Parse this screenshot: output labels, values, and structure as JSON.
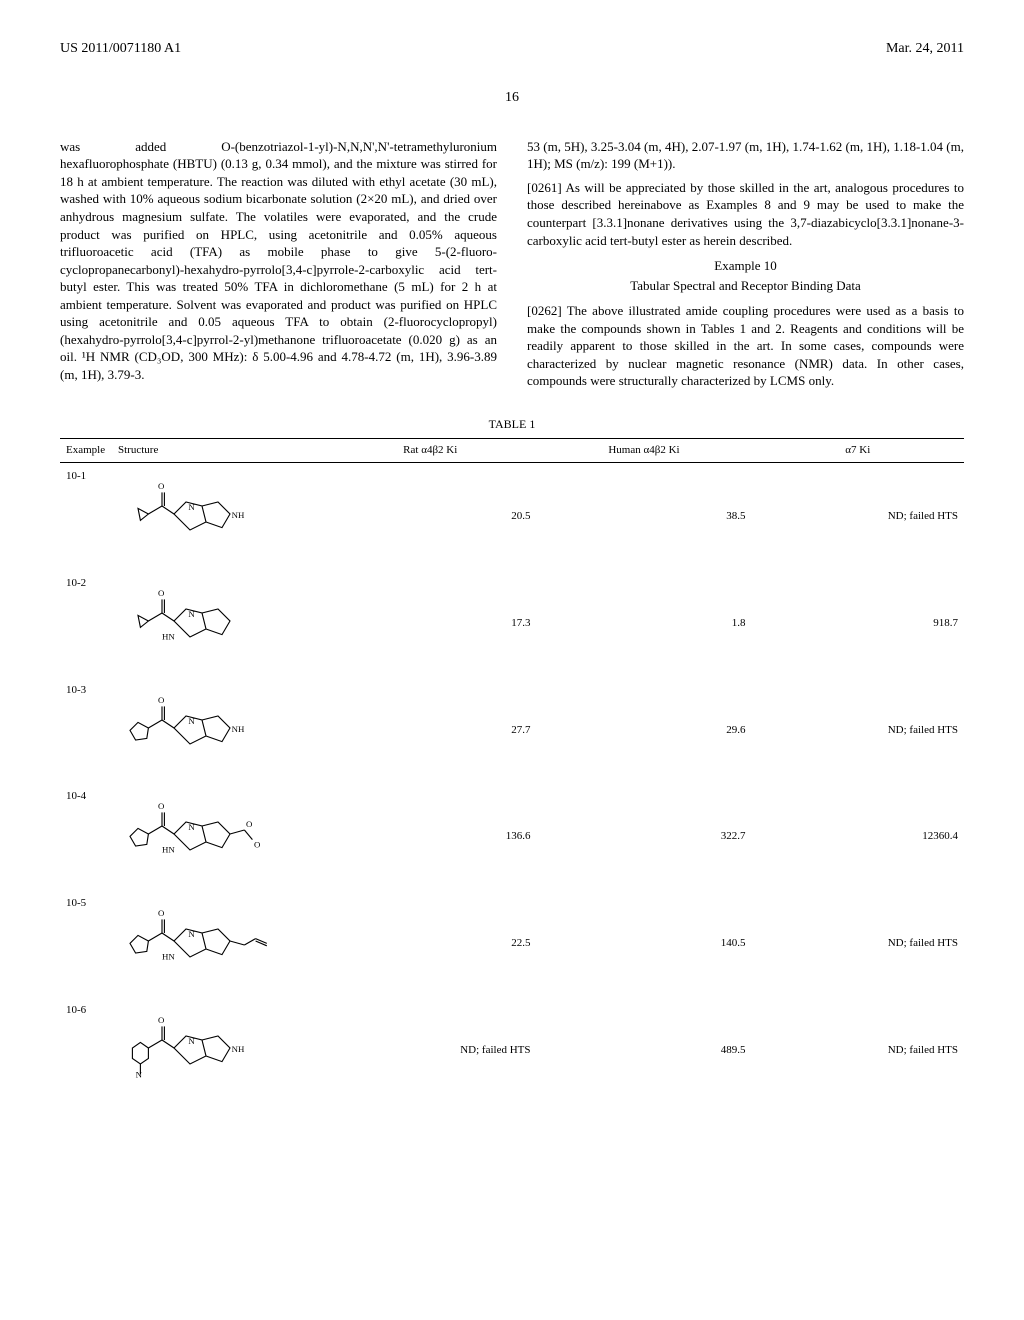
{
  "header": {
    "left": "US 2011/0071180 A1",
    "right": "Mar. 24, 2011"
  },
  "page_number": "16",
  "left_col": {
    "para1": "was added O-(benzotriazol-1-yl)-N,N,N',N'-tetramethyluronium hexafluorophosphate (HBTU) (0.13 g, 0.34 mmol), and the mixture was stirred for 18 h at ambient temperature. The reaction was diluted with ethyl acetate (30 mL), washed with 10% aqueous sodium bicarbonate solution (2×20 mL), and dried over anhydrous magnesium sulfate. The volatiles were evaporated, and the crude product was purified on HPLC, using acetonitrile and 0.05% aqueous trifluoroacetic acid (TFA) as mobile phase to give 5-(2-fluoro-cyclopropanecarbonyl)-hexahydro-pyrrolo[3,4-c]pyrrole-2-carboxylic acid tert-butyl ester. This was treated 50% TFA in dichloromethane (5 mL) for 2 h at ambient temperature. Solvent was evaporated and product was purified on HPLC using acetonitrile and 0.05 aqueous TFA to obtain (2-fluorocyclopropyl)(hexahydro-pyrrolo[3,4-c]pyrrol-2-yl)methanone trifluoroacetate (0.020 g) as an oil. ¹H NMR (CD₃OD, 300 MHz): δ 5.00-4.96 and 4.78-4.72 (m, 1H), 3.96-3.89 (m, 1H), 3.79-3."
  },
  "right_col": {
    "para1": "53 (m, 5H), 3.25-3.04 (m, 4H), 2.07-1.97 (m, 1H), 1.74-1.62 (m, 1H), 1.18-1.04 (m, 1H); MS (m/z): 199 (M+1)).",
    "para2_num": "[0261]",
    "para2": " As will be appreciated by those skilled in the art, analogous procedures to those described hereinabove as Examples 8 and 9 may be used to make the counterpart [3.3.1]nonane derivatives using the 3,7-diazabicyclo[3.3.1]nonane-3-carboxylic acid tert-butyl ester as herein described.",
    "example_heading": "Example 10",
    "example_sub": "Tabular Spectral and Receptor Binding Data",
    "para3_num": "[0262]",
    "para3": " The above illustrated amide coupling procedures were used as a basis to make the compounds shown in Tables 1 and 2. Reagents and conditions will be readily apparent to those skilled in the art. In some cases, compounds were characterized by nuclear magnetic resonance (NMR) data. In other cases, compounds were structurally characterized by LCMS only."
  },
  "table": {
    "caption": "TABLE 1",
    "columns": [
      "Example",
      "Structure",
      "Rat α4β2 Ki",
      "Human α4β2 Ki",
      "α7 Ki"
    ],
    "rows": [
      {
        "example": "10-1",
        "structure_key": "s1",
        "rat": "20.5",
        "human": "38.5",
        "a7": "ND; failed HTS"
      },
      {
        "example": "10-2",
        "structure_key": "s2",
        "rat": "17.3",
        "human": "1.8",
        "a7": "918.7"
      },
      {
        "example": "10-3",
        "structure_key": "s3",
        "rat": "27.7",
        "human": "29.6",
        "a7": "ND; failed HTS"
      },
      {
        "example": "10-4",
        "structure_key": "s4",
        "rat": "136.6",
        "human": "322.7",
        "a7": "12360.4"
      },
      {
        "example": "10-5",
        "structure_key": "s5",
        "rat": "22.5",
        "human": "140.5",
        "a7": "ND; failed HTS"
      },
      {
        "example": "10-6",
        "structure_key": "s6",
        "rat": "ND; failed HTS",
        "human": "489.5",
        "a7": "ND; failed HTS"
      }
    ]
  },
  "structures": {
    "s1": {
      "labels": [
        "O",
        "N",
        "NH"
      ],
      "has_cyclopropyl": true,
      "has_aryl": false
    },
    "s2": {
      "labels": [
        "O",
        "N",
        "HN"
      ],
      "has_cyclopropyl": true,
      "has_aryl": false
    },
    "s3": {
      "labels": [
        "O",
        "N",
        "NH"
      ],
      "has_cyclopropyl": false,
      "has_aryl": false
    },
    "s4": {
      "labels": [
        "O",
        "N",
        "HN",
        "O"
      ],
      "has_cyclopropyl": false,
      "has_aryl": false
    },
    "s5": {
      "labels": [
        "O",
        "N",
        "HN"
      ],
      "has_cyclopropyl": false,
      "has_aryl": false
    },
    "s6": {
      "labels": [
        "O",
        "N",
        "NH",
        "N"
      ],
      "has_cyclopropyl": false,
      "has_aryl": true
    }
  },
  "style": {
    "font_family": "Times New Roman",
    "body_fontsize": 13,
    "table_fontsize": 11,
    "text_color": "#000000",
    "bg_color": "#ffffff",
    "border_color": "#000000"
  }
}
